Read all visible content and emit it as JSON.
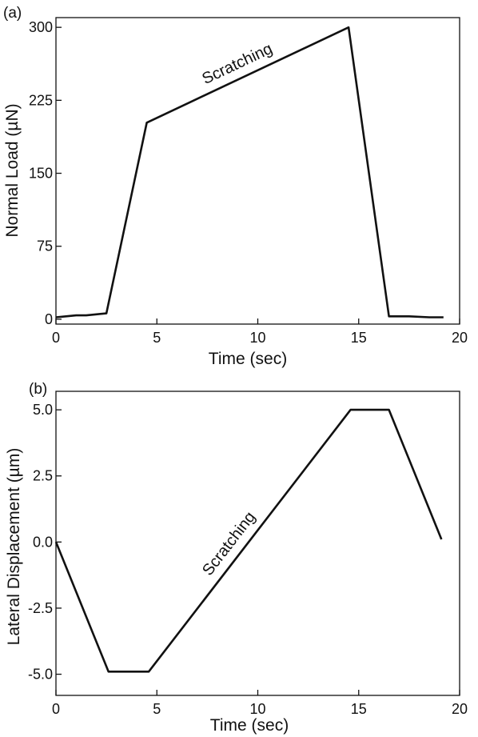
{
  "chart_data": [
    {
      "type": "line",
      "panel_label": "(a)",
      "xlabel": "Time (sec)",
      "ylabel": "Normal Load (µN)",
      "xlim": [
        0,
        20
      ],
      "ylim": [
        -5,
        310
      ],
      "xticks": [
        0,
        5,
        10,
        15,
        20
      ],
      "yticks": [
        0,
        75,
        150,
        225,
        300
      ],
      "xtick_labels": [
        "0",
        "5",
        "10",
        "15",
        "20"
      ],
      "ytick_labels": [
        "0",
        "75",
        "150",
        "225",
        "300"
      ],
      "grid": false,
      "annotation": "Scratching",
      "series": [
        {
          "x": [
            0,
            0.5,
            1.0,
            1.5,
            2.0,
            2.5,
            4.5,
            14.5,
            16.5,
            17.5,
            18.5,
            19.2
          ],
          "y": [
            2,
            3,
            4,
            4,
            5,
            6,
            202,
            300,
            3,
            3,
            2,
            2
          ]
        }
      ]
    },
    {
      "type": "line",
      "panel_label": "(b)",
      "xlabel": "Time (sec)",
      "ylabel": "Lateral Displacement (µm)",
      "xlim": [
        0,
        20
      ],
      "ylim": [
        -5.8,
        5.7
      ],
      "xticks": [
        0,
        5,
        10,
        15,
        20
      ],
      "yticks": [
        -5.0,
        -2.5,
        0.0,
        2.5,
        5.0
      ],
      "xtick_labels": [
        "0",
        "5",
        "10",
        "15",
        "20"
      ],
      "ytick_labels": [
        "-5.0",
        "-2.5",
        "0.0",
        "2.5",
        "5.0"
      ],
      "grid": false,
      "annotation": "Scratching",
      "series": [
        {
          "x": [
            0,
            2.6,
            4.6,
            14.6,
            16.5,
            19.1
          ],
          "y": [
            0.0,
            -4.9,
            -4.9,
            5.0,
            5.0,
            0.1
          ]
        }
      ]
    }
  ]
}
